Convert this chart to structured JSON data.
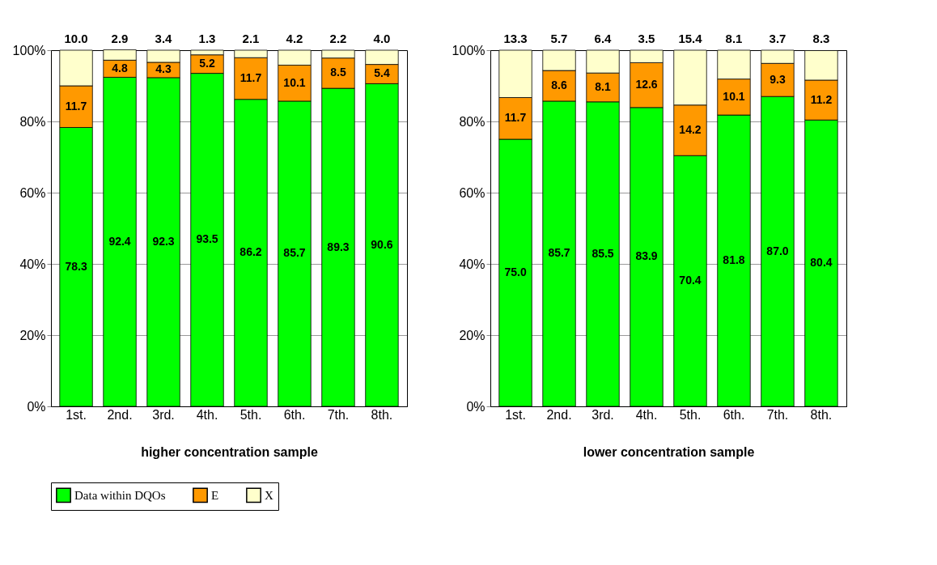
{
  "chart_data": [
    {
      "type": "bar",
      "stacked": true,
      "xlabel": "higher concentration sample",
      "categories": [
        "1st.",
        "2nd.",
        "3rd.",
        "4th.",
        "5th.",
        "6th.",
        "7th.",
        "8th."
      ],
      "series": [
        {
          "name": "Data within DQOs",
          "color": "#00ff00",
          "values": [
            78.3,
            92.4,
            92.3,
            93.5,
            86.2,
            85.7,
            89.3,
            90.6
          ],
          "value_labels": [
            "78.3",
            "92.4",
            "92.3",
            "93.5",
            "86.2",
            "85.7",
            "89.3",
            "90.6"
          ]
        },
        {
          "name": "E",
          "color": "#ff9900",
          "values": [
            11.7,
            4.8,
            4.3,
            5.2,
            11.7,
            10.1,
            8.5,
            5.4
          ],
          "value_labels": [
            "11.7",
            "4.8",
            "4.3",
            "5.2",
            "11.7",
            "10.1",
            "8.5",
            "5.4"
          ]
        },
        {
          "name": "X",
          "color": "#ffffcc",
          "values": [
            10.0,
            2.9,
            3.4,
            1.3,
            2.1,
            4.2,
            2.2,
            4.0
          ],
          "value_labels": [
            "10.0",
            "2.9",
            "3.4",
            "1.3",
            "2.1",
            "4.2",
            "2.2",
            "4.0"
          ]
        }
      ],
      "ylim": [
        0,
        100
      ],
      "yticks": [
        {
          "value": 0,
          "label": "0%"
        },
        {
          "value": 20,
          "label": "20%"
        },
        {
          "value": 40,
          "label": "40%"
        },
        {
          "value": 60,
          "label": "60%"
        },
        {
          "value": 80,
          "label": "80%"
        },
        {
          "value": 100,
          "label": "100%"
        }
      ],
      "grid": "y",
      "legend": "bottom"
    },
    {
      "type": "bar",
      "stacked": true,
      "xlabel": "lower concentration sample",
      "categories": [
        "1st.",
        "2nd.",
        "3rd.",
        "4th.",
        "5th.",
        "6th.",
        "7th.",
        "8th."
      ],
      "series": [
        {
          "color": "#00ff00",
          "values": [
            75.0,
            85.7,
            85.5,
            83.9,
            70.4,
            81.8,
            87.0,
            80.4
          ],
          "value_labels": [
            "75.0",
            "85.7",
            "85.5",
            "83.9",
            "70.4",
            "81.8",
            "87.0",
            "80.4"
          ]
        },
        {
          "color": "#ff9900",
          "values": [
            11.7,
            8.6,
            8.1,
            12.6,
            14.2,
            10.1,
            9.3,
            11.2
          ],
          "value_labels": [
            "11.7",
            "8.6",
            "8.1",
            "12.6",
            "14.2",
            "10.1",
            "9.3",
            "11.2"
          ]
        },
        {
          "color": "#ffffcc",
          "values": [
            13.3,
            5.7,
            6.4,
            3.5,
            15.4,
            8.1,
            3.7,
            8.3
          ],
          "value_labels": [
            "13.3",
            "5.7",
            "6.4",
            "3.5",
            "15.4",
            "8.1",
            "3.7",
            "8.3"
          ]
        }
      ],
      "ylim": [
        0,
        100
      ],
      "yticks": [
        {
          "value": 0,
          "label": "0%"
        },
        {
          "value": 20,
          "label": "20%"
        },
        {
          "value": 40,
          "label": "40%"
        },
        {
          "value": 60,
          "label": "60%"
        },
        {
          "value": 80,
          "label": "80%"
        },
        {
          "value": 100,
          "label": "100%"
        }
      ],
      "grid": "y"
    }
  ]
}
